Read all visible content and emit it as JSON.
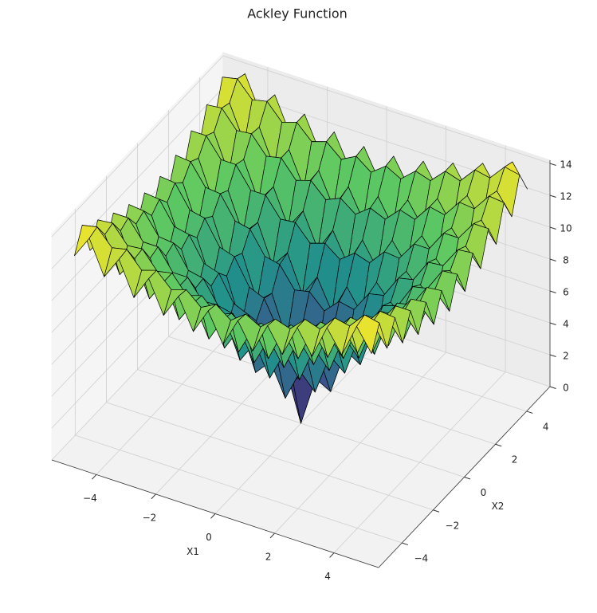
{
  "chart_data": {
    "type": "surface",
    "title": "Ackley Function",
    "xlabel": "X1",
    "ylabel": "X2",
    "colormap": "viridis",
    "edgecolor": "#000000",
    "grid": true,
    "x": [
      -5,
      -4.5,
      -4,
      -3.5,
      -3,
      -2.5,
      -2,
      -1.5,
      -1,
      -0.5,
      0,
      0.5,
      1,
      1.5,
      2,
      2.5,
      3,
      3.5,
      4,
      4.5,
      5
    ],
    "y": [
      -5,
      -4.5,
      -4,
      -3.5,
      -3,
      -2.5,
      -2,
      -1.5,
      -1,
      -0.5,
      0,
      0.5,
      1,
      1.5,
      2,
      2.5,
      3,
      3.5,
      4,
      4.5,
      5
    ],
    "z": [
      [
        12.6,
        14.0,
        11.9,
        13.3,
        11.2,
        12.7,
        10.7,
        12.2,
        10.3,
        11.9,
        10.1,
        11.9,
        10.3,
        12.2,
        10.7,
        12.7,
        11.2,
        13.3,
        11.9,
        14.0,
        12.6
      ],
      [
        14.0,
        14.2,
        13.2,
        13.4,
        12.4,
        12.7,
        11.8,
        12.1,
        11.3,
        11.8,
        11.1,
        11.8,
        11.3,
        12.1,
        11.8,
        12.7,
        12.4,
        13.4,
        13.2,
        14.2,
        14.0
      ],
      [
        11.9,
        13.2,
        11.0,
        12.3,
        10.1,
        11.5,
        9.4,
        10.8,
        8.8,
        10.4,
        8.6,
        10.4,
        8.8,
        10.8,
        9.4,
        11.5,
        10.1,
        12.3,
        11.0,
        13.2,
        11.9
      ],
      [
        13.3,
        13.4,
        12.3,
        12.4,
        11.3,
        11.5,
        10.4,
        10.7,
        9.8,
        10.2,
        9.5,
        10.2,
        9.8,
        10.7,
        10.4,
        11.5,
        11.3,
        12.4,
        12.3,
        13.4,
        13.3
      ],
      [
        11.2,
        12.4,
        10.1,
        11.3,
        9.0,
        10.2,
        8.0,
        9.3,
        7.2,
        8.7,
        6.9,
        8.7,
        7.2,
        9.3,
        8.0,
        10.2,
        9.0,
        11.3,
        10.1,
        12.4,
        11.2
      ],
      [
        12.7,
        12.7,
        11.5,
        11.5,
        10.2,
        10.2,
        9.0,
        9.1,
        8.1,
        8.4,
        7.7,
        8.4,
        8.1,
        9.1,
        9.0,
        10.2,
        10.2,
        11.5,
        11.5,
        12.7,
        12.7
      ],
      [
        10.7,
        11.8,
        9.4,
        10.4,
        8.0,
        9.0,
        6.6,
        7.7,
        5.4,
        6.8,
        4.9,
        6.8,
        5.4,
        7.7,
        6.6,
        9.0,
        8.0,
        10.4,
        9.4,
        11.8,
        10.7
      ],
      [
        12.2,
        12.1,
        10.8,
        10.7,
        9.3,
        9.1,
        7.7,
        7.5,
        6.2,
        6.4,
        5.5,
        6.4,
        6.2,
        7.5,
        7.7,
        9.1,
        9.3,
        10.7,
        10.8,
        12.1,
        12.2
      ],
      [
        10.3,
        11.3,
        8.8,
        9.8,
        7.2,
        8.1,
        5.4,
        6.2,
        3.6,
        4.6,
        2.6,
        4.6,
        3.6,
        6.2,
        5.4,
        8.1,
        7.2,
        9.8,
        8.8,
        11.3,
        10.3
      ],
      [
        11.9,
        11.8,
        10.4,
        10.2,
        8.7,
        8.4,
        6.8,
        6.4,
        4.6,
        4.3,
        3.1,
        4.3,
        4.6,
        6.4,
        6.8,
        8.4,
        8.7,
        10.2,
        10.4,
        11.8,
        11.9
      ],
      [
        10.1,
        11.1,
        8.6,
        9.5,
        6.9,
        7.7,
        4.9,
        5.5,
        2.6,
        3.1,
        0,
        3.1,
        2.6,
        5.5,
        4.9,
        7.7,
        6.9,
        9.5,
        8.6,
        11.1,
        10.1
      ],
      [
        11.9,
        11.8,
        10.4,
        10.2,
        8.7,
        8.4,
        6.8,
        6.4,
        4.6,
        4.3,
        3.1,
        4.3,
        4.6,
        6.4,
        6.8,
        8.4,
        8.7,
        10.2,
        10.4,
        11.8,
        11.9
      ],
      [
        10.3,
        11.3,
        8.8,
        9.8,
        7.2,
        8.1,
        5.4,
        6.2,
        3.6,
        4.6,
        2.6,
        4.6,
        3.6,
        6.2,
        5.4,
        8.1,
        7.2,
        9.8,
        8.8,
        11.3,
        10.3
      ],
      [
        12.2,
        12.1,
        10.8,
        10.7,
        9.3,
        9.1,
        7.7,
        7.5,
        6.2,
        6.4,
        5.5,
        6.4,
        6.2,
        7.5,
        7.7,
        9.1,
        9.3,
        10.7,
        10.8,
        12.1,
        12.2
      ],
      [
        10.7,
        11.8,
        9.4,
        10.4,
        8.0,
        9.0,
        6.6,
        7.7,
        5.4,
        6.8,
        4.9,
        6.8,
        5.4,
        7.7,
        6.6,
        9.0,
        8.0,
        10.4,
        9.4,
        11.8,
        10.7
      ],
      [
        12.7,
        12.7,
        11.5,
        11.5,
        10.2,
        10.2,
        9.0,
        9.1,
        8.1,
        8.4,
        7.7,
        8.4,
        8.1,
        9.1,
        9.0,
        10.2,
        10.2,
        11.5,
        11.5,
        12.7,
        12.7
      ],
      [
        11.2,
        12.4,
        10.1,
        11.3,
        9.0,
        10.2,
        8.0,
        9.3,
        7.2,
        8.7,
        6.9,
        8.7,
        7.2,
        9.3,
        8.0,
        10.2,
        9.0,
        11.3,
        10.1,
        12.4,
        11.2
      ],
      [
        13.3,
        13.4,
        12.3,
        12.4,
        11.3,
        11.5,
        10.4,
        10.7,
        9.8,
        10.2,
        9.5,
        10.2,
        9.8,
        10.7,
        10.4,
        11.5,
        11.3,
        12.4,
        12.3,
        13.4,
        13.3
      ],
      [
        11.9,
        13.2,
        11.0,
        12.3,
        10.1,
        11.5,
        9.4,
        10.8,
        8.8,
        10.4,
        8.6,
        10.4,
        8.8,
        10.8,
        9.4,
        11.5,
        10.1,
        12.3,
        11.0,
        13.2,
        11.9
      ],
      [
        14.0,
        14.2,
        13.2,
        13.4,
        12.4,
        12.7,
        11.8,
        12.1,
        11.3,
        11.8,
        11.1,
        11.8,
        11.3,
        12.1,
        11.8,
        12.7,
        12.4,
        13.4,
        13.2,
        14.2,
        14.0
      ],
      [
        12.6,
        14.0,
        11.9,
        13.3,
        11.2,
        12.7,
        10.7,
        12.2,
        10.3,
        11.9,
        10.1,
        11.9,
        10.3,
        12.2,
        10.7,
        12.7,
        11.2,
        13.3,
        11.9,
        14.0,
        12.6
      ]
    ],
    "xlim": [
      -5.5,
      5.5
    ],
    "ylim": [
      -5.5,
      5.5
    ],
    "zlim": [
      0,
      14.2
    ],
    "xticks": [
      {
        "value": -4,
        "label": "−4"
      },
      {
        "value": -2,
        "label": "−2"
      },
      0,
      2,
      4
    ],
    "yticks": [
      {
        "value": -4,
        "label": "−4"
      },
      {
        "value": -2,
        "label": "−2"
      },
      0,
      2,
      4
    ],
    "zticks": [
      0,
      2,
      4,
      6,
      8,
      10,
      12,
      14
    ]
  }
}
